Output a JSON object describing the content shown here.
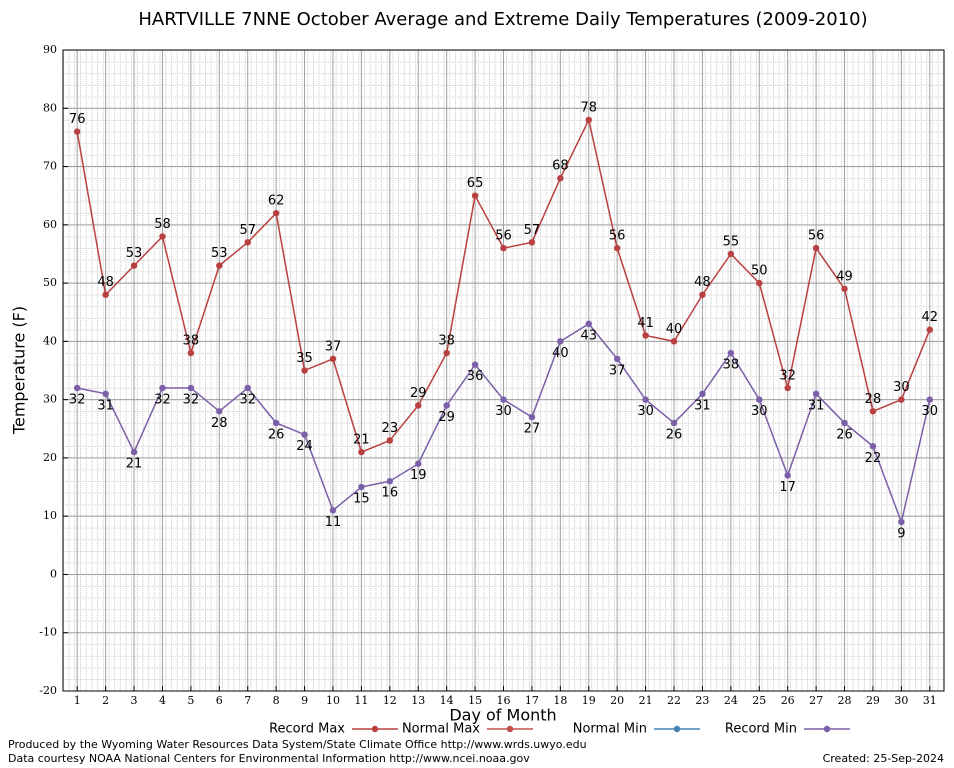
{
  "chart_data": {
    "type": "line",
    "title": "HARTVILLE 7NNE October Average and Extreme Daily Temperatures (2009-2010)",
    "x_label": "Day of Month",
    "y_label": "Temperature (F)",
    "x": [
      1,
      2,
      3,
      4,
      5,
      6,
      7,
      8,
      9,
      10,
      11,
      12,
      13,
      14,
      15,
      16,
      17,
      18,
      19,
      20,
      21,
      22,
      23,
      24,
      25,
      26,
      27,
      28,
      29,
      30,
      31
    ],
    "xlim": [
      0.5,
      31.5
    ],
    "ylim": [
      -20,
      90
    ],
    "yticks": [
      -20,
      -10,
      0,
      10,
      20,
      30,
      40,
      50,
      60,
      70,
      80,
      90
    ],
    "grid": true,
    "series": [
      {
        "name": "Record Max",
        "color": "#b94040",
        "label_side": "above",
        "values": [
          76,
          48,
          53,
          58,
          38,
          53,
          57,
          62,
          35,
          37,
          21,
          23,
          29,
          38,
          65,
          56,
          57,
          68,
          78,
          56,
          41,
          40,
          48,
          55,
          50,
          32,
          56,
          49,
          28,
          30,
          42
        ]
      },
      {
        "name": "Normal Max",
        "color": "#c0504d",
        "values": [
          null,
          null,
          null,
          null,
          null,
          null,
          null,
          null,
          null,
          null,
          null,
          null,
          null,
          null,
          null,
          null,
          null,
          null,
          null,
          null,
          null,
          null,
          null,
          null,
          null,
          null,
          null,
          null,
          null,
          null,
          null
        ]
      },
      {
        "name": "Normal Min",
        "color": "#4682b4",
        "values": [
          null,
          null,
          null,
          null,
          null,
          null,
          null,
          null,
          null,
          null,
          null,
          null,
          null,
          null,
          null,
          null,
          null,
          null,
          null,
          null,
          null,
          null,
          null,
          null,
          null,
          null,
          null,
          null,
          null,
          null,
          null
        ]
      },
      {
        "name": "Record Min",
        "color": "#7b5fa8",
        "label_side": "below",
        "values": [
          32,
          31,
          21,
          32,
          32,
          28,
          32,
          26,
          24,
          11,
          15,
          16,
          19,
          29,
          36,
          30,
          27,
          40,
          43,
          37,
          30,
          26,
          31,
          38,
          30,
          17,
          31,
          26,
          22,
          9,
          30
        ]
      }
    ],
    "footer": [
      "Produced by the Wyoming Water Resources Data System/State Climate Office http://www.wrds.uwyo.edu",
      "Data courtesy NOAA National Centers for Environmental Information http://www.ncei.noaa.gov"
    ],
    "created": "Created: 25-Sep-2024"
  }
}
